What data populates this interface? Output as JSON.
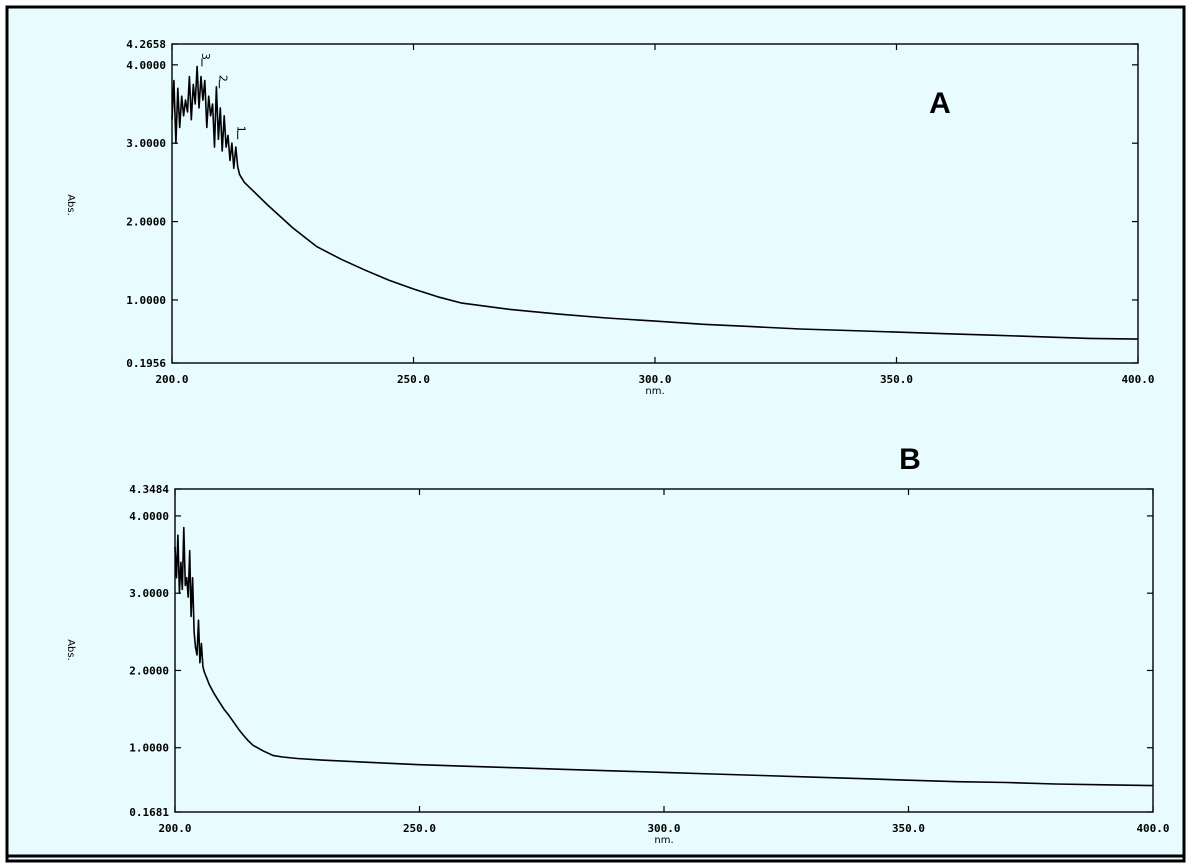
{
  "colors": {
    "background": "#e8fbfe",
    "border": "#000000",
    "line": "#000000"
  },
  "chart_data": [
    {
      "type": "line",
      "panel_label": "A",
      "xlabel": "nm.",
      "ylabel": "Abs.",
      "xlim": [
        200.0,
        400.0
      ],
      "ylim": [
        0.1956,
        4.2658
      ],
      "x_ticks": [
        "200.0",
        "250.0",
        "300.0",
        "350.0",
        "400.0"
      ],
      "y_ticks": [
        "0.1956",
        "1.0000",
        "2.0000",
        "3.0000",
        "4.0000",
        "4.2658"
      ],
      "peak_labels": [
        {
          "text": "3",
          "x": 206.2,
          "y": 3.98
        },
        {
          "text": "2",
          "x": 209.8,
          "y": 3.7
        },
        {
          "text": "1",
          "x": 213.6,
          "y": 3.05
        }
      ],
      "series": [
        {
          "x": [
            200.0,
            200.4,
            200.8,
            201.2,
            201.6,
            202.0,
            202.4,
            202.8,
            203.2,
            203.6,
            204.0,
            204.4,
            204.8,
            205.2,
            205.6,
            206.0,
            206.4,
            206.8,
            207.2,
            207.6,
            208.0,
            208.4,
            208.8,
            209.2,
            209.6,
            210.0,
            210.4,
            210.8,
            211.2,
            211.6,
            212.0,
            212.4,
            212.8,
            213.2,
            213.6,
            214.0,
            215,
            217,
            220,
            225,
            230,
            235,
            240,
            245,
            250,
            255,
            260,
            270,
            280,
            290,
            300,
            310,
            320,
            330,
            340,
            350,
            360,
            370,
            380,
            390,
            400
          ],
          "y": [
            3.3,
            3.8,
            3.0,
            3.7,
            3.2,
            3.6,
            3.35,
            3.55,
            3.4,
            3.85,
            3.3,
            3.75,
            3.5,
            3.98,
            3.45,
            3.85,
            3.55,
            3.8,
            3.2,
            3.6,
            3.35,
            3.5,
            2.95,
            3.72,
            3.05,
            3.45,
            2.9,
            3.35,
            2.95,
            3.1,
            2.78,
            3.0,
            2.68,
            2.95,
            2.7,
            2.6,
            2.5,
            2.38,
            2.2,
            1.92,
            1.68,
            1.52,
            1.38,
            1.25,
            1.14,
            1.04,
            0.96,
            0.88,
            0.82,
            0.77,
            0.73,
            0.69,
            0.66,
            0.63,
            0.61,
            0.59,
            0.57,
            0.55,
            0.53,
            0.51,
            0.5
          ]
        }
      ]
    },
    {
      "type": "line",
      "panel_label": "B",
      "xlabel": "nm.",
      "ylabel": "Abs.",
      "xlim": [
        200.0,
        400.0
      ],
      "ylim": [
        0.1681,
        4.3484
      ],
      "x_ticks": [
        "200.0",
        "250.0",
        "300.0",
        "350.0",
        "400.0"
      ],
      "y_ticks": [
        "0.1681",
        "1.0000",
        "2.0000",
        "3.0000",
        "4.0000",
        "4.3484"
      ],
      "series": [
        {
          "x": [
            200.0,
            200.3,
            200.6,
            200.9,
            201.2,
            201.5,
            201.8,
            202.1,
            202.4,
            202.7,
            203.0,
            203.3,
            203.6,
            203.9,
            204.2,
            204.5,
            204.8,
            205.1,
            205.4,
            205.7,
            206.0,
            206.5,
            207,
            208,
            209,
            210,
            211,
            212,
            213,
            214,
            215,
            216,
            218,
            220,
            222,
            225,
            230,
            240,
            250,
            260,
            270,
            280,
            290,
            300,
            310,
            320,
            330,
            340,
            350,
            360,
            370,
            380,
            390,
            400
          ],
          "y": [
            3.6,
            3.2,
            3.75,
            3.0,
            3.4,
            3.05,
            3.85,
            3.1,
            3.2,
            2.95,
            3.55,
            2.7,
            3.2,
            2.5,
            2.3,
            2.2,
            2.65,
            2.1,
            2.35,
            2.05,
            1.98,
            1.9,
            1.82,
            1.7,
            1.6,
            1.5,
            1.42,
            1.33,
            1.24,
            1.16,
            1.09,
            1.03,
            0.96,
            0.9,
            0.88,
            0.86,
            0.84,
            0.81,
            0.78,
            0.76,
            0.74,
            0.72,
            0.7,
            0.68,
            0.66,
            0.64,
            0.62,
            0.6,
            0.58,
            0.56,
            0.55,
            0.53,
            0.52,
            0.51
          ]
        }
      ]
    }
  ]
}
